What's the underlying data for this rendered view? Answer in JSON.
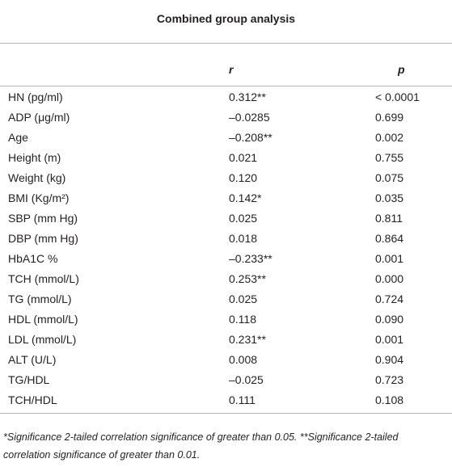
{
  "table": {
    "title": "Combined group analysis",
    "headers": [
      "r",
      "p"
    ],
    "rows": [
      [
        "HN (pg/ml)",
        "0.312**",
        "< 0.0001"
      ],
      [
        "ADP (μg/ml)",
        "–0.0285",
        "0.699"
      ],
      [
        "Age",
        "–0.208**",
        "0.002"
      ],
      [
        "Height (m)",
        "0.021",
        "0.755"
      ],
      [
        "Weight (kg)",
        "0.120",
        "0.075"
      ],
      [
        "BMI (Kg/m²)",
        "0.142*",
        "0.035"
      ],
      [
        "SBP (mm Hg)",
        "0.025",
        "0.811"
      ],
      [
        "DBP (mm Hg)",
        "0.018",
        "0.864"
      ],
      [
        "HbA1C %",
        "–0.233**",
        "0.001"
      ],
      [
        "TCH (mmol/L)",
        "0.253**",
        "0.000"
      ],
      [
        "TG (mmol/L)",
        "0.025",
        "0.724"
      ],
      [
        "HDL (mmol/L)",
        "0.118",
        "0.090"
      ],
      [
        "LDL (mmol/L)",
        "0.231**",
        "0.001"
      ],
      [
        "ALT (U/L)",
        "0.008",
        "0.904"
      ],
      [
        "TG/HDL",
        "–0.025",
        "0.723"
      ],
      [
        "TCH/HDL",
        "0.111",
        "0.108"
      ]
    ],
    "footnote": "*Significance 2-tailed correlation significance of greater than 0.05. **Significance 2-tailed correlation significance of greater than 0.01."
  }
}
